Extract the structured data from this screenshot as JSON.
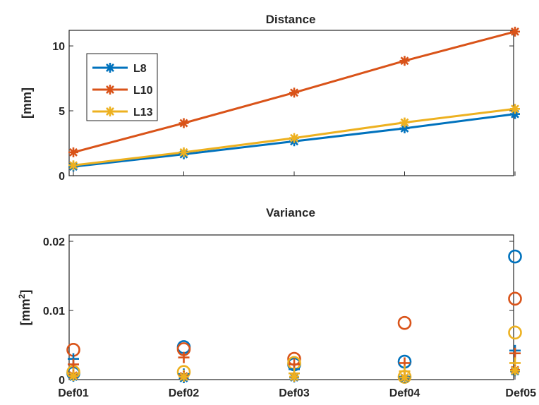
{
  "chart_data": [
    {
      "type": "line",
      "title": "Distance",
      "xlabel": "",
      "ylabel": "[mm]",
      "categories": [
        "Def01",
        "Def02",
        "Def03",
        "Def04",
        "Def05"
      ],
      "ylim": [
        0,
        11.2
      ],
      "yticks": [
        "0",
        "5",
        "10"
      ],
      "show_xticklabels": false,
      "grid": false,
      "legend_position": "top-left",
      "marker": "asterisk",
      "series": [
        {
          "name": "L8",
          "color": "#0072BD",
          "values": [
            0.7,
            1.65,
            2.65,
            3.65,
            4.75
          ]
        },
        {
          "name": "L10",
          "color": "#D95319",
          "values": [
            1.8,
            4.05,
            6.4,
            8.85,
            11.1
          ]
        },
        {
          "name": "L13",
          "color": "#EDB120",
          "values": [
            0.8,
            1.8,
            2.9,
            4.1,
            5.15
          ]
        }
      ]
    },
    {
      "type": "scatter",
      "title": "Variance",
      "xlabel": "",
      "ylabel": "[mm",
      "ylabel_sup": "2",
      "ylabel_end": "]",
      "categories": [
        "Def01",
        "Def02",
        "Def03",
        "Def04",
        "Def05"
      ],
      "ylim": [
        0,
        0.02
      ],
      "yticks": [
        "0",
        "0.01",
        "0.02"
      ],
      "grid": false,
      "series": [
        {
          "marker": "circle",
          "color": "#0072BD",
          "values": [
            0.0009,
            0.0047,
            0.0022,
            0.0026,
            0.0178
          ]
        },
        {
          "marker": "circle",
          "color": "#D95319",
          "values": [
            0.0043,
            0.0044,
            0.003,
            0.0082,
            0.0117
          ]
        },
        {
          "marker": "circle",
          "color": "#EDB120",
          "values": [
            0.0011,
            0.0011,
            0.0024,
            0.0004,
            0.0068
          ]
        },
        {
          "marker": "plus",
          "color": "#0072BD",
          "values": [
            0.003,
            0.0008,
            0.0015,
            0.0004,
            0.0042
          ]
        },
        {
          "marker": "plus",
          "color": "#D95319",
          "values": [
            0.0022,
            0.0032,
            0.0022,
            0.0024,
            0.0038
          ]
        },
        {
          "marker": "plus",
          "color": "#EDB120",
          "values": [
            0.0009,
            0.0006,
            0.0009,
            0.0012,
            0.0024
          ]
        },
        {
          "marker": "asterisk",
          "color": "#0072BD",
          "values": [
            0.0004,
            0.0002,
            0.0003,
            0.0002,
            0.0012
          ]
        },
        {
          "marker": "asterisk",
          "color": "#D95319",
          "values": [
            0.0006,
            0.0005,
            0.0004,
            0.0003,
            0.0014
          ]
        },
        {
          "marker": "asterisk",
          "color": "#EDB120",
          "values": [
            0.0005,
            0.0004,
            0.0004,
            0.0003,
            0.0013
          ]
        }
      ]
    }
  ]
}
